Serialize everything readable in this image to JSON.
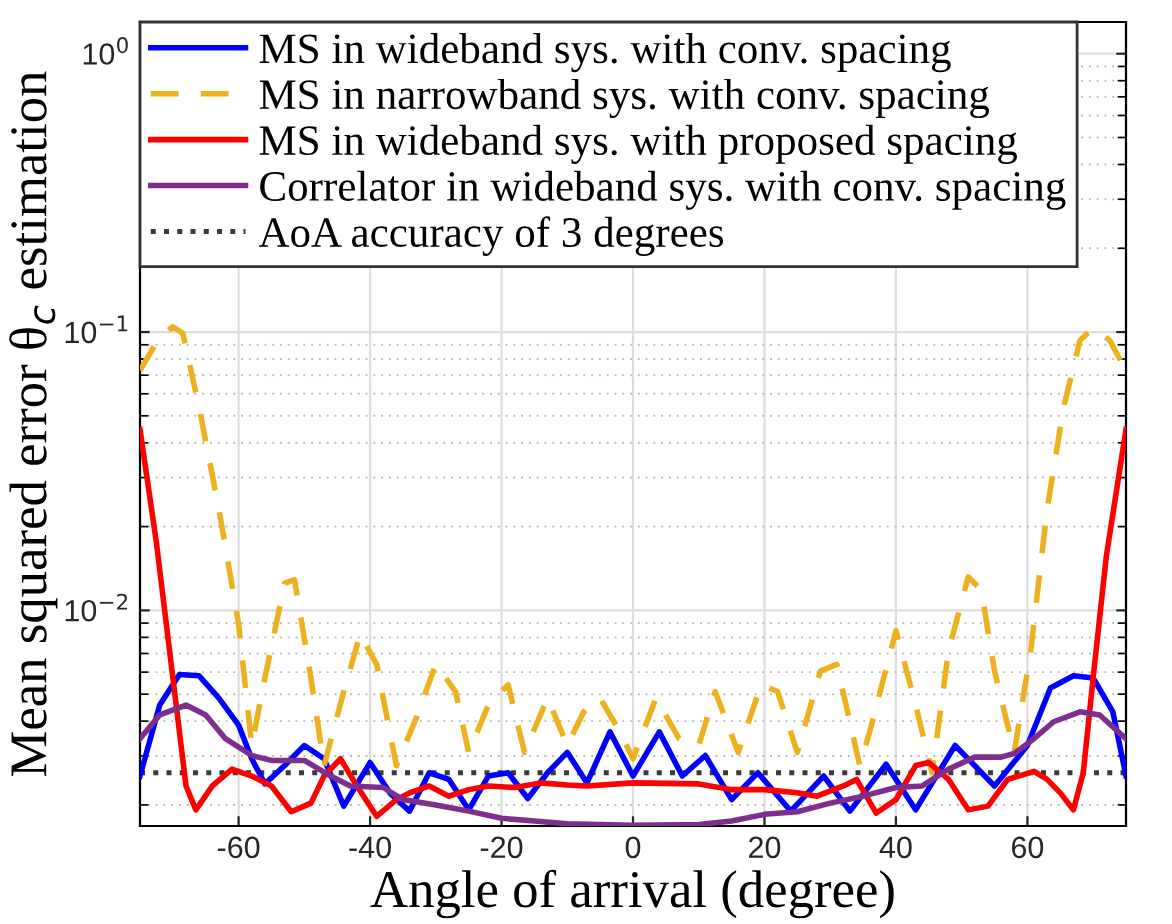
{
  "chart_data": {
    "type": "line",
    "xlabel": "Angle of arrival (degree)",
    "ylabel": "Mean squared error θ$_{c}$ estimation",
    "xlim": [
      -75,
      75
    ],
    "xticks": [
      -60,
      -40,
      -20,
      0,
      20,
      40,
      60
    ],
    "ylim": [
      0.00168,
      1.3
    ],
    "yticks": [
      {
        "value": 0.01,
        "label": "10$^{−2}$"
      },
      {
        "value": 0.1,
        "label": "10$^{−1}$"
      },
      {
        "value": 1,
        "label": "10$^{0}$"
      }
    ],
    "log": "y",
    "grid": true,
    "legend": "top",
    "series": [
      {
        "name": "MS in wideband sys. with conv. spacing",
        "color": "#0000ff",
        "line_style": "solid",
        "x": [
          -75,
          -72,
          -69,
          -66,
          -63,
          -60,
          -58,
          -56,
          -53,
          -50,
          -47,
          -44,
          -40,
          -37,
          -34,
          -31,
          -28,
          -25,
          -22,
          -19,
          -16,
          -13,
          -10,
          -7,
          -3.5,
          0,
          4,
          7.5,
          11,
          15,
          19,
          24,
          29,
          33,
          38.5,
          43,
          49,
          55,
          60,
          63.5,
          67,
          70,
          73,
          75
        ],
        "values": [
          0.00254,
          0.00457,
          0.00588,
          0.00582,
          0.00484,
          0.00387,
          0.00293,
          0.00238,
          0.00277,
          0.00327,
          0.00293,
          0.00198,
          0.00284,
          0.00221,
          0.0019,
          0.00261,
          0.00247,
          0.00192,
          0.00254,
          0.00261,
          0.00211,
          0.00261,
          0.00309,
          0.0024,
          0.00366,
          0.00254,
          0.00366,
          0.00254,
          0.00301,
          0.00209,
          0.00261,
          0.0019,
          0.00254,
          0.0019,
          0.0028,
          0.00192,
          0.00327,
          0.00234,
          0.00327,
          0.00526,
          0.00582,
          0.00572,
          0.00432,
          0.00254
        ]
      },
      {
        "name": "MS in narrowband sys. with conv. spacing",
        "color": "#edb120",
        "line_style": "dashed",
        "x": [
          -75,
          -72,
          -70,
          -68.5,
          -66,
          -63,
          -60,
          -58,
          -56,
          -53,
          -51.5,
          -49,
          -47,
          -44,
          -41.5,
          -39,
          -36,
          -33,
          -30,
          -27,
          -25,
          -22,
          -19,
          -16.5,
          -13,
          -10,
          -7.5,
          -5,
          -2,
          0,
          3.5,
          7,
          10,
          12.5,
          16,
          19.5,
          22,
          25,
          28.5,
          31,
          34.5,
          36,
          40,
          43,
          45.5,
          48,
          51,
          53,
          55,
          58,
          60.5,
          63,
          65.5,
          68,
          70,
          72.5,
          75
        ],
        "values": [
          0.0728,
          0.096,
          0.1045,
          0.099,
          0.0535,
          0.0231,
          0.00894,
          0.00327,
          0.00572,
          0.0125,
          0.0129,
          0.00572,
          0.00277,
          0.00511,
          0.00822,
          0.0064,
          0.00277,
          0.00409,
          0.0064,
          0.00511,
          0.00309,
          0.00457,
          0.00541,
          0.00309,
          0.00484,
          0.00327,
          0.00432,
          0.00484,
          0.00366,
          0.00293,
          0.00484,
          0.00346,
          0.00327,
          0.00511,
          0.00309,
          0.00541,
          0.00511,
          0.00309,
          0.00605,
          0.0064,
          0.00277,
          0.00366,
          0.00845,
          0.00457,
          0.00261,
          0.00715,
          0.0132,
          0.0118,
          0.00605,
          0.00309,
          0.00715,
          0.0231,
          0.0535,
          0.0935,
          0.1034,
          0.0935,
          0.0728
        ]
      },
      {
        "name": "MS in wideband sys. with proposed spacing",
        "color": "#ff0000",
        "line_style": "solid",
        "x": [
          -75,
          -72.5,
          -70,
          -68,
          -66.5,
          -64,
          -61,
          -58,
          -55,
          -52,
          -49,
          -47,
          -44.5,
          -42,
          -39,
          -36,
          -34,
          -31,
          -28,
          -25,
          -22,
          -18,
          -14,
          -10,
          -7,
          0,
          10,
          15,
          20,
          25,
          28,
          32,
          34,
          37,
          40,
          43,
          45,
          48,
          51,
          54,
          57,
          61,
          63,
          65,
          67,
          68.5,
          70,
          72,
          75
        ],
        "values": [
          0.0447,
          0.0175,
          0.00572,
          0.00234,
          0.00192,
          0.00234,
          0.00269,
          0.00254,
          0.00234,
          0.00189,
          0.00203,
          0.00254,
          0.00293,
          0.00234,
          0.00182,
          0.00209,
          0.00221,
          0.00234,
          0.00215,
          0.00227,
          0.00234,
          0.00231,
          0.0024,
          0.00236,
          0.00234,
          0.0024,
          0.00238,
          0.00227,
          0.00227,
          0.00221,
          0.00215,
          0.00234,
          0.00247,
          0.00187,
          0.00209,
          0.00277,
          0.00284,
          0.00247,
          0.00192,
          0.00198,
          0.00247,
          0.00264,
          0.00247,
          0.00221,
          0.00192,
          0.00261,
          0.00572,
          0.0156,
          0.0447
        ]
      },
      {
        "name": "Correlator in wideband sys. with conv. spacing",
        "color": "#7e2f8e",
        "line_style": "solid",
        "x": [
          -75,
          -72,
          -68,
          -65,
          -62,
          -58,
          -55,
          -50,
          -46,
          -43,
          -38,
          -35,
          -30,
          -25,
          -20,
          -15,
          -10,
          0,
          10,
          15,
          20,
          25,
          30,
          35,
          40,
          44,
          48,
          52,
          56,
          58,
          61,
          64,
          68,
          71,
          75
        ],
        "values": [
          0.00346,
          0.00421,
          0.00457,
          0.00421,
          0.00346,
          0.00301,
          0.00289,
          0.00289,
          0.00254,
          0.00234,
          0.00231,
          0.00209,
          0.002,
          0.0019,
          0.00179,
          0.00175,
          0.00171,
          0.00169,
          0.0017,
          0.00175,
          0.00185,
          0.00189,
          0.00203,
          0.00215,
          0.00231,
          0.00234,
          0.00269,
          0.00297,
          0.00297,
          0.00306,
          0.00346,
          0.00398,
          0.00432,
          0.00421,
          0.00346
        ]
      }
    ],
    "ref_lines": [
      {
        "axis": "y",
        "value": 0.00261,
        "label": "AoA accuracy of 3 degrees",
        "color": "#3a3a3a",
        "line_style": "dotted"
      }
    ]
  }
}
